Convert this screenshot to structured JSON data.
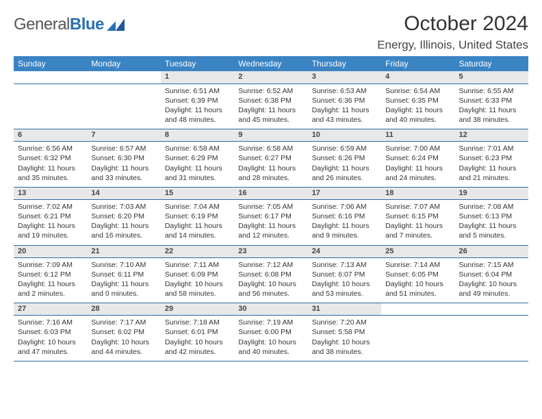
{
  "logo": {
    "word1": "General",
    "word2": "Blue"
  },
  "header": {
    "title": "October 2024",
    "location": "Energy, Illinois, United States"
  },
  "colors": {
    "header_bg": "#3b84c4",
    "daynum_bg": "#e8e8e8",
    "rule": "#2f6aa3"
  },
  "weekdays": [
    "Sunday",
    "Monday",
    "Tuesday",
    "Wednesday",
    "Thursday",
    "Friday",
    "Saturday"
  ],
  "weeks": [
    [
      null,
      null,
      {
        "n": "1",
        "sr": "6:51 AM",
        "ss": "6:39 PM",
        "dl": "11 hours and 48 minutes."
      },
      {
        "n": "2",
        "sr": "6:52 AM",
        "ss": "6:38 PM",
        "dl": "11 hours and 45 minutes."
      },
      {
        "n": "3",
        "sr": "6:53 AM",
        "ss": "6:36 PM",
        "dl": "11 hours and 43 minutes."
      },
      {
        "n": "4",
        "sr": "6:54 AM",
        "ss": "6:35 PM",
        "dl": "11 hours and 40 minutes."
      },
      {
        "n": "5",
        "sr": "6:55 AM",
        "ss": "6:33 PM",
        "dl": "11 hours and 38 minutes."
      }
    ],
    [
      {
        "n": "6",
        "sr": "6:56 AM",
        "ss": "6:32 PM",
        "dl": "11 hours and 35 minutes."
      },
      {
        "n": "7",
        "sr": "6:57 AM",
        "ss": "6:30 PM",
        "dl": "11 hours and 33 minutes."
      },
      {
        "n": "8",
        "sr": "6:58 AM",
        "ss": "6:29 PM",
        "dl": "11 hours and 31 minutes."
      },
      {
        "n": "9",
        "sr": "6:58 AM",
        "ss": "6:27 PM",
        "dl": "11 hours and 28 minutes."
      },
      {
        "n": "10",
        "sr": "6:59 AM",
        "ss": "6:26 PM",
        "dl": "11 hours and 26 minutes."
      },
      {
        "n": "11",
        "sr": "7:00 AM",
        "ss": "6:24 PM",
        "dl": "11 hours and 24 minutes."
      },
      {
        "n": "12",
        "sr": "7:01 AM",
        "ss": "6:23 PM",
        "dl": "11 hours and 21 minutes."
      }
    ],
    [
      {
        "n": "13",
        "sr": "7:02 AM",
        "ss": "6:21 PM",
        "dl": "11 hours and 19 minutes."
      },
      {
        "n": "14",
        "sr": "7:03 AM",
        "ss": "6:20 PM",
        "dl": "11 hours and 16 minutes."
      },
      {
        "n": "15",
        "sr": "7:04 AM",
        "ss": "6:19 PM",
        "dl": "11 hours and 14 minutes."
      },
      {
        "n": "16",
        "sr": "7:05 AM",
        "ss": "6:17 PM",
        "dl": "11 hours and 12 minutes."
      },
      {
        "n": "17",
        "sr": "7:06 AM",
        "ss": "6:16 PM",
        "dl": "11 hours and 9 minutes."
      },
      {
        "n": "18",
        "sr": "7:07 AM",
        "ss": "6:15 PM",
        "dl": "11 hours and 7 minutes."
      },
      {
        "n": "19",
        "sr": "7:08 AM",
        "ss": "6:13 PM",
        "dl": "11 hours and 5 minutes."
      }
    ],
    [
      {
        "n": "20",
        "sr": "7:09 AM",
        "ss": "6:12 PM",
        "dl": "11 hours and 2 minutes."
      },
      {
        "n": "21",
        "sr": "7:10 AM",
        "ss": "6:11 PM",
        "dl": "11 hours and 0 minutes."
      },
      {
        "n": "22",
        "sr": "7:11 AM",
        "ss": "6:09 PM",
        "dl": "10 hours and 58 minutes."
      },
      {
        "n": "23",
        "sr": "7:12 AM",
        "ss": "6:08 PM",
        "dl": "10 hours and 56 minutes."
      },
      {
        "n": "24",
        "sr": "7:13 AM",
        "ss": "6:07 PM",
        "dl": "10 hours and 53 minutes."
      },
      {
        "n": "25",
        "sr": "7:14 AM",
        "ss": "6:05 PM",
        "dl": "10 hours and 51 minutes."
      },
      {
        "n": "26",
        "sr": "7:15 AM",
        "ss": "6:04 PM",
        "dl": "10 hours and 49 minutes."
      }
    ],
    [
      {
        "n": "27",
        "sr": "7:16 AM",
        "ss": "6:03 PM",
        "dl": "10 hours and 47 minutes."
      },
      {
        "n": "28",
        "sr": "7:17 AM",
        "ss": "6:02 PM",
        "dl": "10 hours and 44 minutes."
      },
      {
        "n": "29",
        "sr": "7:18 AM",
        "ss": "6:01 PM",
        "dl": "10 hours and 42 minutes."
      },
      {
        "n": "30",
        "sr": "7:19 AM",
        "ss": "6:00 PM",
        "dl": "10 hours and 40 minutes."
      },
      {
        "n": "31",
        "sr": "7:20 AM",
        "ss": "5:58 PM",
        "dl": "10 hours and 38 minutes."
      },
      null,
      null
    ]
  ],
  "labels": {
    "sunrise": "Sunrise:",
    "sunset": "Sunset:",
    "daylight": "Daylight:"
  }
}
